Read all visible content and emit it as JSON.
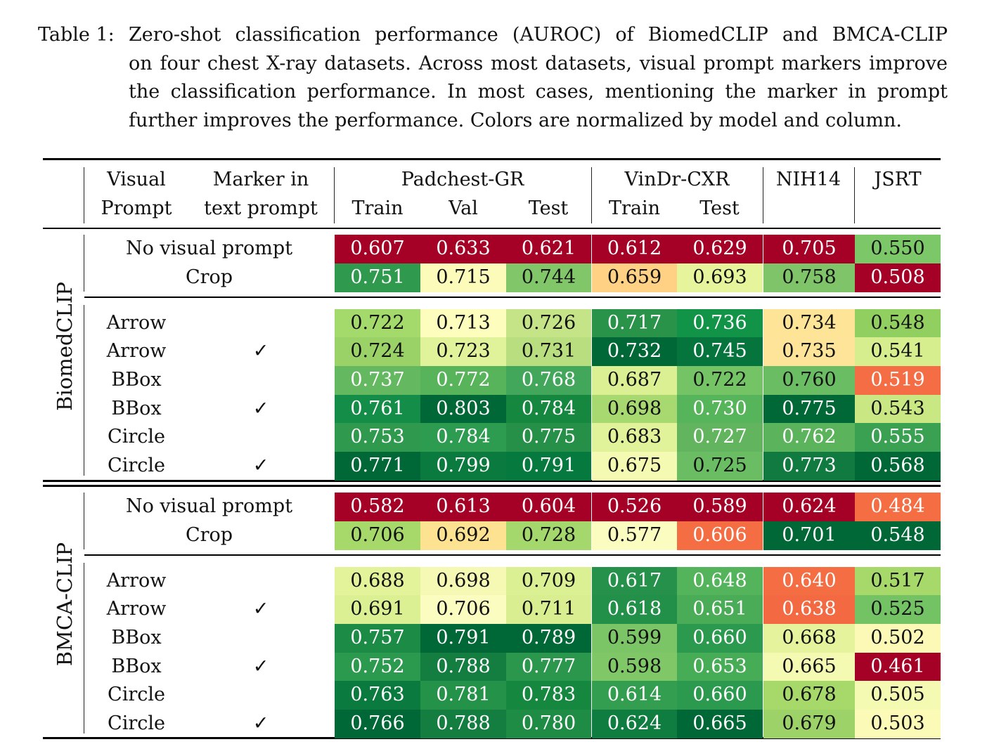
{
  "caption": {
    "label": "Table 1:",
    "lines": [
      "Zero-shot classification performance (AUROC) of BiomedCLIP and BMCA-CLIP",
      "on four chest X-ray datasets. Across most datasets, visual prompt markers improve",
      "the classification performance. In most cases, mentioning the marker in prompt",
      "further improves the performance. Colors are normalized by model and column."
    ]
  },
  "header": {
    "visual_prompt": [
      "Visual",
      "Prompt"
    ],
    "marker": [
      "Marker in",
      "text prompt"
    ],
    "datasets": [
      "Padchest-GR",
      "VinDr-CXR",
      "NIH14",
      "JSRT"
    ],
    "splits": [
      "Train",
      "Val",
      "Test",
      "Train",
      "Test"
    ]
  },
  "checkmark": "✓",
  "chart_data": {
    "type": "table",
    "columns": [
      "Padchest-GR Train",
      "Padchest-GR Val",
      "Padchest-GR Test",
      "VinDr-CXR Train",
      "VinDr-CXR Test",
      "NIH14",
      "JSRT"
    ],
    "groups": [
      {
        "name": "BiomedCLIP",
        "rows": [
          {
            "prompt": "No visual prompt",
            "marker": false,
            "values": [
              "0.607",
              "0.633",
              "0.621",
              "0.612",
              "0.629",
              "0.705",
              "0.550"
            ],
            "colors": [
              "#a50026",
              "#a50026",
              "#a50026",
              "#a50026",
              "#a50026",
              "#a50026",
              "#7cc767"
            ]
          },
          {
            "prompt": "Crop",
            "marker": false,
            "values": [
              "0.751",
              "0.715",
              "0.744",
              "0.659",
              "0.693",
              "0.758",
              "0.508"
            ],
            "colors": [
              "#2f9a4e",
              "#fdfbba",
              "#82c66a",
              "#fed184",
              "#e6f49b",
              "#7fc468",
              "#a50026"
            ]
          },
          {
            "prompt": "Arrow",
            "marker": false,
            "values": [
              "0.722",
              "0.713",
              "0.726",
              "0.717",
              "0.736",
              "0.734",
              "0.548"
            ],
            "colors": [
              "#a4d96b",
              "#fdfdbe",
              "#c4e487",
              "#2a934a",
              "#129448",
              "#fde496",
              "#91cf60"
            ]
          },
          {
            "prompt": "Arrow",
            "marker": true,
            "values": [
              "0.724",
              "0.723",
              "0.731",
              "0.732",
              "0.745",
              "0.735",
              "0.541"
            ],
            "colors": [
              "#9ad268",
              "#e1f39a",
              "#b9de80",
              "#006837",
              "#05753d",
              "#fde498",
              "#d6ee8e"
            ]
          },
          {
            "prompt": "BBox",
            "marker": false,
            "values": [
              "0.737",
              "0.772",
              "0.768",
              "0.687",
              "0.722",
              "0.760",
              "0.519"
            ],
            "colors": [
              "#63b860",
              "#58b45b",
              "#42a75a",
              "#dbef93",
              "#74c365",
              "#6bbd63",
              "#f56d44"
            ]
          },
          {
            "prompt": "BBox",
            "marker": true,
            "values": [
              "0.761",
              "0.803",
              "0.784",
              "0.698",
              "0.730",
              "0.775",
              "0.543"
            ],
            "colors": [
              "#148d48",
              "#006837",
              "#15873f",
              "#a7d970",
              "#56b55b",
              "#006837",
              "#c9e783"
            ]
          },
          {
            "prompt": "Circle",
            "marker": false,
            "values": [
              "0.753",
              "0.784",
              "0.775",
              "0.683",
              "0.727",
              "0.762",
              "0.555"
            ],
            "colors": [
              "#2f9a4e",
              "#2e9c50",
              "#279048",
              "#e1f39a",
              "#62b45e",
              "#5bb35c",
              "#3aa152"
            ]
          },
          {
            "prompt": "Circle",
            "marker": true,
            "values": [
              "0.771",
              "0.799",
              "0.791",
              "0.675",
              "0.725",
              "0.773",
              "0.568"
            ],
            "colors": [
              "#006837",
              "#0a7a3e",
              "#067a3e",
              "#f4fab2",
              "#6abd62",
              "#117a40",
              "#006837"
            ]
          }
        ]
      },
      {
        "name": "BMCA-CLIP",
        "rows": [
          {
            "prompt": "No visual prompt",
            "marker": false,
            "values": [
              "0.582",
              "0.613",
              "0.604",
              "0.526",
              "0.589",
              "0.624",
              "0.484"
            ],
            "colors": [
              "#a50026",
              "#a50026",
              "#a50026",
              "#a50026",
              "#a50026",
              "#a50026",
              "#f46d43"
            ]
          },
          {
            "prompt": "Crop",
            "marker": false,
            "values": [
              "0.706",
              "0.692",
              "0.728",
              "0.577",
              "0.606",
              "0.701",
              "0.548"
            ],
            "colors": [
              "#a6d96a",
              "#fde291",
              "#a4d86c",
              "#fbfcc0",
              "#f56d43",
              "#006837",
              "#006837"
            ]
          },
          {
            "prompt": "Arrow",
            "marker": false,
            "values": [
              "0.688",
              "0.698",
              "0.709",
              "0.617",
              "0.648",
              "0.640",
              "0.517"
            ],
            "colors": [
              "#e2f399",
              "#f6f9b4",
              "#dbef93",
              "#25914a",
              "#54b45b",
              "#f46d43",
              "#a6d96a"
            ]
          },
          {
            "prompt": "Arrow",
            "marker": true,
            "values": [
              "0.691",
              "0.706",
              "0.711",
              "0.618",
              "0.651",
              "0.638",
              "0.525"
            ],
            "colors": [
              "#dbef93",
              "#fbfcbf",
              "#d8ee90",
              "#229049",
              "#4aac56",
              "#f26942",
              "#73c264"
            ]
          },
          {
            "prompt": "BBox",
            "marker": false,
            "values": [
              "0.757",
              "0.791",
              "0.789",
              "0.599",
              "0.660",
              "0.668",
              "0.502"
            ],
            "colors": [
              "#1b8b46",
              "#006837",
              "#006837",
              "#7cc566",
              "#2b9a4f",
              "#e5f49c",
              "#fbf9b5"
            ]
          },
          {
            "prompt": "BBox",
            "marker": true,
            "values": [
              "0.752",
              "0.788",
              "0.777",
              "0.598",
              "0.653",
              "0.665",
              "0.461"
            ],
            "colors": [
              "#2c9a4e",
              "#147d40",
              "#2b974c",
              "#80c767",
              "#47ac56",
              "#f4fab2",
              "#a50026"
            ]
          },
          {
            "prompt": "Circle",
            "marker": false,
            "values": [
              "0.763",
              "0.781",
              "0.783",
              "0.614",
              "0.660",
              "0.678",
              "0.505"
            ],
            "colors": [
              "#0b7a3e",
              "#259249",
              "#15873f",
              "#349e50",
              "#2b9a4f",
              "#a6d96a",
              "#f4fab2"
            ]
          },
          {
            "prompt": "Circle",
            "marker": true,
            "values": [
              "0.766",
              "0.788",
              "0.780",
              "0.624",
              "0.665",
              "0.679",
              "0.503"
            ],
            "colors": [
              "#006837",
              "#147d40",
              "#1f8c45",
              "#0f7d40",
              "#006837",
              "#9cd267",
              "#fbfab7"
            ]
          }
        ]
      }
    ]
  }
}
